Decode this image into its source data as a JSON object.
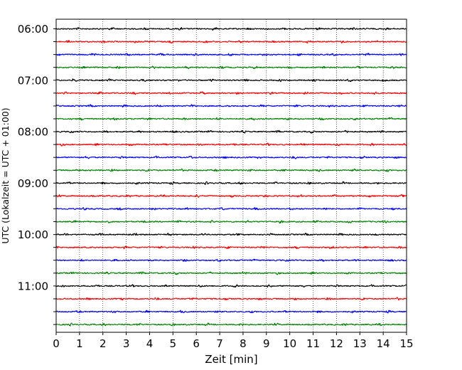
{
  "chart_data": {
    "type": "line",
    "title": "",
    "xlabel": "Zeit  [min]",
    "ylabel": "UTC (Lokalzeit = UTC + 01:00)",
    "xlim": [
      0,
      15
    ],
    "x_ticks": [
      "0",
      "1",
      "2",
      "3",
      "4",
      "5",
      "6",
      "7",
      "8",
      "9",
      "10",
      "11",
      "12",
      "13",
      "14",
      "15"
    ],
    "y_tick_labels": [
      "06:00",
      "07:00",
      "08:00",
      "09:00",
      "10:00",
      "11:00"
    ],
    "row_interval_minutes": 15,
    "grid": "vertical dotted lines at each minute",
    "trace_colors": [
      "#000000",
      "#ff0000",
      "#0000ff",
      "#008000"
    ],
    "traces": [
      {
        "start": "06:00"
      },
      {
        "start": "06:15"
      },
      {
        "start": "06:30"
      },
      {
        "start": "06:45"
      },
      {
        "start": "07:00"
      },
      {
        "start": "07:15"
      },
      {
        "start": "07:30"
      },
      {
        "start": "07:45"
      },
      {
        "start": "08:00"
      },
      {
        "start": "08:15"
      },
      {
        "start": "08:30"
      },
      {
        "start": "08:45"
      },
      {
        "start": "09:00"
      },
      {
        "start": "09:15"
      },
      {
        "start": "09:30"
      },
      {
        "start": "09:45"
      },
      {
        "start": "10:00"
      },
      {
        "start": "10:15"
      },
      {
        "start": "10:30"
      },
      {
        "start": "10:45"
      },
      {
        "start": "11:00"
      },
      {
        "start": "11:15"
      },
      {
        "start": "11:30"
      },
      {
        "start": "11:45"
      }
    ]
  }
}
